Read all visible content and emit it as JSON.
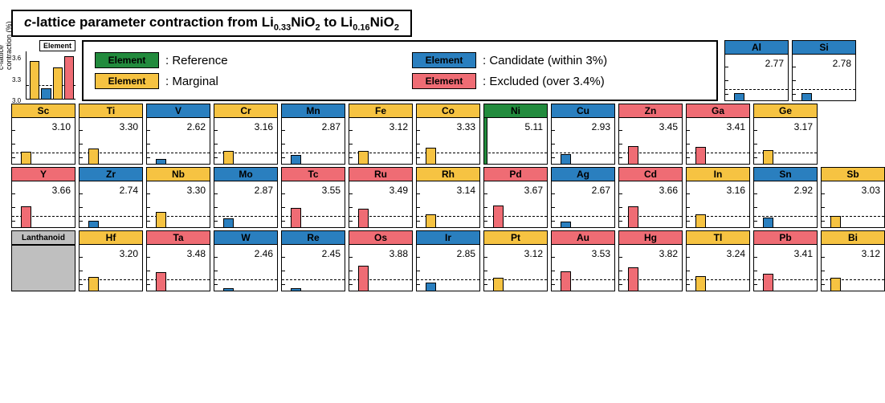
{
  "title_parts": {
    "pre": "c",
    "mid": "-lattice parameter contraction from Li",
    "s1": "0.33",
    "mid2": "NiO",
    "s2": "2",
    "mid3": " to Li",
    "s3": "0.16",
    "end": "NiO",
    "s4": "2"
  },
  "legend_mini": {
    "label": "Element",
    "ylabel": "c-lattice\ncontraction (%)",
    "ticks": [
      "3.6",
      "3.3",
      "3.0"
    ],
    "dash_rel": 0.27,
    "bars": [
      {
        "h": 0.8,
        "color": "#f6c342"
      },
      {
        "h": 0.22,
        "color": "#2a7fbf"
      },
      {
        "h": 0.66,
        "color": "#f6c342"
      },
      {
        "h": 0.9,
        "color": "#ef6c74"
      }
    ]
  },
  "categories": {
    "reference": {
      "label": "Element",
      "text": ": Reference",
      "color": "#228b3d"
    },
    "candidate": {
      "label": "Element",
      "text": ": Candidate (within 3%)",
      "color": "#2a7fbf"
    },
    "marginal": {
      "label": "Element",
      "text": ": Marginal",
      "color": "#f6c342"
    },
    "excluded": {
      "label": "Element",
      "text": ": Excluded (over 3.4%)",
      "color": "#ef6c74"
    }
  },
  "chartScale": {
    "min": 2.3,
    "max": 5.2,
    "dash_at": 3.0,
    "tick_rel": [
      0.15,
      0.45,
      0.75
    ]
  },
  "rows": [
    {
      "offset": 10,
      "cells": [
        {
          "sym": "Al",
          "val": 2.77,
          "cat": "candidate"
        },
        {
          "sym": "Si",
          "val": 2.78,
          "cat": "candidate"
        }
      ]
    },
    {
      "offset": 0,
      "cells": [
        {
          "sym": "Sc",
          "val": 3.1,
          "cat": "marginal"
        },
        {
          "sym": "Ti",
          "val": 3.3,
          "cat": "marginal"
        },
        {
          "sym": "V",
          "val": 2.62,
          "cat": "candidate"
        },
        {
          "sym": "Cr",
          "val": 3.16,
          "cat": "marginal"
        },
        {
          "sym": "Mn",
          "val": 2.87,
          "cat": "candidate"
        },
        {
          "sym": "Fe",
          "val": 3.12,
          "cat": "marginal"
        },
        {
          "sym": "Co",
          "val": 3.33,
          "cat": "marginal"
        },
        {
          "sym": "Ni",
          "val": 5.11,
          "cat": "reference"
        },
        {
          "sym": "Cu",
          "val": 2.93,
          "cat": "candidate"
        },
        {
          "sym": "Zn",
          "val": 3.45,
          "cat": "excluded"
        },
        {
          "sym": "Ga",
          "val": 3.41,
          "cat": "excluded"
        },
        {
          "sym": "Ge",
          "val": 3.17,
          "cat": "marginal"
        }
      ]
    },
    {
      "offset": 0,
      "cells": [
        {
          "sym": "Y",
          "val": 3.66,
          "cat": "excluded"
        },
        {
          "sym": "Zr",
          "val": 2.74,
          "cat": "candidate"
        },
        {
          "sym": "Nb",
          "val": 3.3,
          "cat": "marginal"
        },
        {
          "sym": "Mo",
          "val": 2.87,
          "cat": "candidate"
        },
        {
          "sym": "Tc",
          "val": 3.55,
          "cat": "excluded"
        },
        {
          "sym": "Ru",
          "val": 3.49,
          "cat": "excluded"
        },
        {
          "sym": "Rh",
          "val": 3.14,
          "cat": "marginal"
        },
        {
          "sym": "Pd",
          "val": 3.67,
          "cat": "excluded"
        },
        {
          "sym": "Ag",
          "val": 2.67,
          "cat": "candidate"
        },
        {
          "sym": "Cd",
          "val": 3.66,
          "cat": "excluded"
        },
        {
          "sym": "In",
          "val": 3.16,
          "cat": "marginal"
        },
        {
          "sym": "Sn",
          "val": 2.92,
          "cat": "candidate"
        },
        {
          "sym": "Sb",
          "val": 3.03,
          "cat": "marginal"
        }
      ]
    },
    {
      "offset": 0,
      "cells": [
        {
          "sym": "Lanthanoid",
          "val": null,
          "cat": "lanthanoid"
        },
        {
          "sym": "Hf",
          "val": 3.2,
          "cat": "marginal"
        },
        {
          "sym": "Ta",
          "val": 3.48,
          "cat": "excluded"
        },
        {
          "sym": "W",
          "val": 2.46,
          "cat": "candidate"
        },
        {
          "sym": "Re",
          "val": 2.45,
          "cat": "candidate"
        },
        {
          "sym": "Os",
          "val": 3.88,
          "cat": "excluded"
        },
        {
          "sym": "Ir",
          "val": 2.85,
          "cat": "candidate"
        },
        {
          "sym": "Pt",
          "val": 3.12,
          "cat": "marginal"
        },
        {
          "sym": "Au",
          "val": 3.53,
          "cat": "excluded"
        },
        {
          "sym": "Hg",
          "val": 3.82,
          "cat": "excluded"
        },
        {
          "sym": "Tl",
          "val": 3.24,
          "cat": "marginal"
        },
        {
          "sym": "Pb",
          "val": 3.41,
          "cat": "excluded"
        },
        {
          "sym": "Bi",
          "val": 3.12,
          "cat": "marginal"
        }
      ]
    }
  ],
  "colors": {
    "reference": "#228b3d",
    "candidate": "#2a7fbf",
    "marginal": "#f6c342",
    "excluded": "#ef6c74",
    "lanthanoid": "#bfbfbf"
  }
}
